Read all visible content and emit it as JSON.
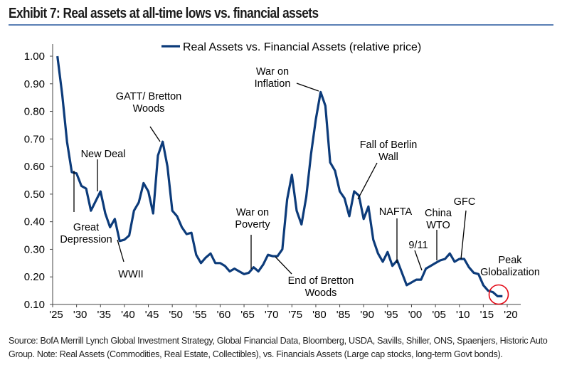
{
  "title": "Exhibit 7: Real assets at all-time lows vs. financial assets",
  "footer": "Source:  BofA Merrill Lynch Global Investment Strategy, Global Financial Data, Bloomberg, USDA, Savills, Shiller, ONS, Spaenjers, Historic Auto Group. Note:  Real Assets (Commodities,  Real Estate, Collectibles),  vs. Financials Assets (Large cap stocks,  long-term Govt bonds).",
  "colors": {
    "series": "#0c3b7a",
    "highlight": "#e30613",
    "rule": "#5a7fb4"
  },
  "chart_data": {
    "type": "line",
    "title": "",
    "xlabel": "",
    "ylabel": "",
    "xlim": [
      1925,
      2020
    ],
    "ylim": [
      0.1,
      1.0
    ],
    "grid": false,
    "legend": "top-center",
    "x_tick_labels": [
      "'25",
      "'30",
      "'35",
      "'40",
      "'45",
      "'50",
      "'55",
      "'60",
      "'65",
      "'70",
      "'75",
      "'80",
      "'85",
      "'90",
      "'95",
      "'00",
      "'05",
      "'10",
      "'15",
      "'20"
    ],
    "y_tick_labels": [
      "0.10",
      "0.20",
      "0.30",
      "0.40",
      "0.50",
      "0.60",
      "0.70",
      "0.80",
      "0.90",
      "1.00"
    ],
    "series": [
      {
        "name": "Real Assets vs. Financial Assets (relative price)",
        "x": [
          1926,
          1927,
          1928,
          1929,
          1930,
          1931,
          1932,
          1933,
          1935,
          1936,
          1937,
          1938,
          1939,
          1940,
          1941,
          1942,
          1943,
          1944,
          1945,
          1946,
          1947,
          1948,
          1949,
          1950,
          1951,
          1952,
          1953,
          1954,
          1955,
          1956,
          1957,
          1958,
          1959,
          1960,
          1961,
          1962,
          1963,
          1964,
          1965,
          1966,
          1967,
          1968,
          1969,
          1970,
          1971,
          1972,
          1973,
          1974,
          1975,
          1976,
          1977,
          1978,
          1979,
          1980,
          1981,
          1982,
          1983,
          1984,
          1985,
          1986,
          1987,
          1988,
          1989,
          1990,
          1991,
          1992,
          1993,
          1994,
          1995,
          1996,
          1997,
          1998,
          1999,
          2000,
          2001,
          2002,
          2003,
          2004,
          2005,
          2006,
          2007,
          2008,
          2009,
          2010,
          2011,
          2012,
          2013,
          2014,
          2015,
          2016,
          2017,
          2018,
          2019
        ],
        "values": [
          1.0,
          0.86,
          0.69,
          0.58,
          0.575,
          0.53,
          0.52,
          0.44,
          0.51,
          0.43,
          0.38,
          0.41,
          0.33,
          0.335,
          0.35,
          0.44,
          0.47,
          0.54,
          0.51,
          0.43,
          0.64,
          0.69,
          0.6,
          0.44,
          0.42,
          0.38,
          0.355,
          0.36,
          0.28,
          0.25,
          0.27,
          0.285,
          0.25,
          0.25,
          0.24,
          0.22,
          0.23,
          0.22,
          0.21,
          0.215,
          0.235,
          0.22,
          0.245,
          0.28,
          0.275,
          0.275,
          0.3,
          0.48,
          0.57,
          0.44,
          0.39,
          0.49,
          0.645,
          0.77,
          0.87,
          0.82,
          0.615,
          0.585,
          0.51,
          0.485,
          0.42,
          0.51,
          0.495,
          0.41,
          0.455,
          0.335,
          0.285,
          0.255,
          0.29,
          0.24,
          0.26,
          0.215,
          0.17,
          0.18,
          0.19,
          0.19,
          0.23,
          0.24,
          0.25,
          0.26,
          0.265,
          0.285,
          0.255,
          0.265,
          0.265,
          0.235,
          0.215,
          0.21,
          0.17,
          0.15,
          0.145,
          0.13,
          0.13
        ]
      }
    ],
    "annotations": [
      {
        "id": "great-depression",
        "lines": [
          "Great",
          "Depression"
        ]
      },
      {
        "id": "new-deal",
        "lines": [
          "New Deal"
        ]
      },
      {
        "id": "wwii",
        "lines": [
          "WWII"
        ]
      },
      {
        "id": "gatt",
        "lines": [
          "GATT/ Bretton",
          "Woods"
        ]
      },
      {
        "id": "war-on-poverty",
        "lines": [
          "War on",
          "Poverty"
        ]
      },
      {
        "id": "end-of-bretton-woods",
        "lines": [
          "End of Bretton",
          "Woods"
        ]
      },
      {
        "id": "war-on-inflation",
        "lines": [
          "War on",
          "Inflation"
        ]
      },
      {
        "id": "fall-of-berlin-wall",
        "lines": [
          "Fall of Berlin",
          "Wall"
        ]
      },
      {
        "id": "nafta",
        "lines": [
          "NAFTA"
        ]
      },
      {
        "id": "9-11",
        "lines": [
          "9/11"
        ]
      },
      {
        "id": "china-wto",
        "lines": [
          "China",
          "WTO"
        ]
      },
      {
        "id": "gfc",
        "lines": [
          "GFC"
        ]
      },
      {
        "id": "peak-globalization",
        "lines": [
          "Peak",
          "Globalization"
        ],
        "highlight": true
      }
    ]
  }
}
